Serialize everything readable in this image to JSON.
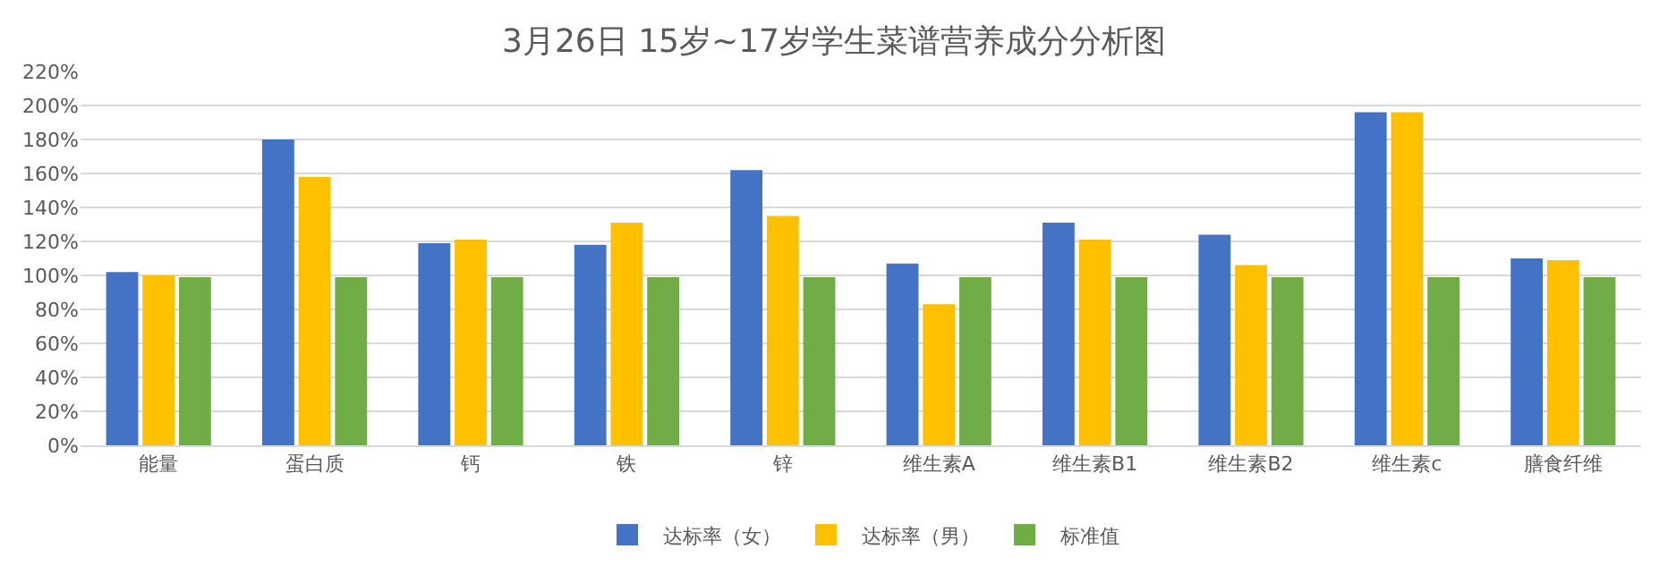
{
  "chart_data": {
    "type": "bar",
    "title": "3月26日 15岁~17岁学生菜谱营养成分分析图",
    "categories": [
      "能量",
      "蛋白质",
      "钙",
      "铁",
      "锌",
      "维生素A",
      "维生素B1",
      "维生素B2",
      "维生素c",
      "膳食纤维"
    ],
    "series": [
      {
        "name": "达标率（女）",
        "color": "#4472c4",
        "values": [
          102,
          180,
          119,
          118,
          162,
          107,
          131,
          124,
          196,
          110
        ]
      },
      {
        "name": "达标率（男）",
        "color": "#ffc000",
        "values": [
          100,
          158,
          121,
          131,
          135,
          83,
          121,
          106,
          196,
          109
        ]
      },
      {
        "name": "标准值",
        "color": "#70ad47",
        "values": [
          99,
          99,
          99,
          99,
          99,
          99,
          99,
          99,
          99,
          99
        ]
      }
    ],
    "ylim": [
      0,
      220
    ],
    "yticks": [
      {
        "value": 0,
        "label": "0%"
      },
      {
        "value": 20,
        "label": "20%"
      },
      {
        "value": 40,
        "label": "40%"
      },
      {
        "value": 60,
        "label": "60%"
      },
      {
        "value": 80,
        "label": "80%"
      },
      {
        "value": 100,
        "label": "100%"
      },
      {
        "value": 120,
        "label": "120%"
      },
      {
        "value": 140,
        "label": "140%"
      },
      {
        "value": 160,
        "label": "160%"
      },
      {
        "value": 180,
        "label": "180%"
      },
      {
        "value": 200,
        "label": "200%"
      },
      {
        "value": 220,
        "label": "220%"
      }
    ],
    "grid": "y",
    "legend": "bottom"
  }
}
